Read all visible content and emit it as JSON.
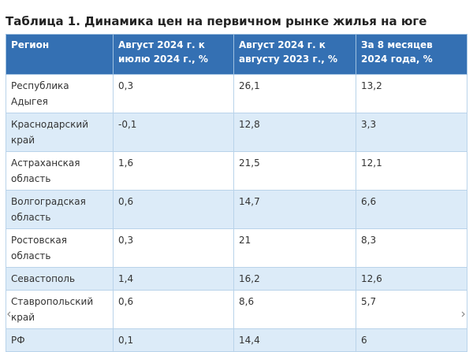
{
  "header": {
    "title": "Таблица 1. Динамика цен на первичном рынке жилья на юге"
  },
  "table": {
    "columns": [
      "Регион",
      "Август 2024 г. к июлю 2024 г., %",
      "Август 2024 г. к августу 2023 г., %",
      "За 8 месяцев 2024 года, %"
    ],
    "rows": [
      [
        "Республика Адыгея",
        "0,3",
        "26,1",
        "13,2"
      ],
      [
        "Краснодарский край",
        "-0,1",
        "12,8",
        "3,3"
      ],
      [
        "Астраханская область",
        "1,6",
        "21,5",
        "12,1"
      ],
      [
        "Волгоградская область",
        "0,6",
        "14,7",
        "6,6"
      ],
      [
        "Ростовская область",
        "0,3",
        "21",
        "8,3"
      ],
      [
        "Севастополь",
        "1,4",
        "16,2",
        "12,6"
      ],
      [
        "Ставропольский край",
        "0,6",
        "8,6",
        "5,7"
      ],
      [
        "РФ",
        "0,1",
        "14,4",
        "6"
      ]
    ]
  }
}
